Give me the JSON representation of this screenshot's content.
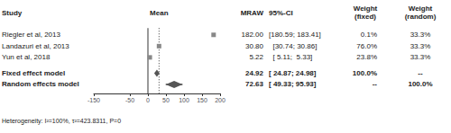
{
  "chart_data": {
    "type": "forest",
    "columns": {
      "study": "Study",
      "mraw": "MRAW",
      "ci": "95%-CI",
      "weight_fixed": "Weight\n(fixed)",
      "weight_random": "Weight\n(random)"
    },
    "categories": [
      "Riegler et al, 2013",
      "Landazuri et al, 2013",
      "Yun et al, 2018"
    ],
    "values": [
      182.0,
      30.8,
      5.22
    ],
    "ci_low": [
      180.59,
      30.74,
      5.11
    ],
    "ci_high": [
      183.41,
      30.86,
      5.33
    ],
    "value_labels": [
      " 182.00",
      "  30.80",
      "   5.22"
    ],
    "ci_labels": [
      "[180.59; 183.41]",
      "  [30.74; 30.86]",
      "  [ 5.11;  5.33]"
    ],
    "weight_fixed": [
      "  0.1%",
      " 76.0%",
      " 23.8%"
    ],
    "weight_random": [
      "33.3%",
      "33.3%",
      "33.3%"
    ],
    "color": "#888888",
    "marker": "square",
    "summary": [
      {
        "name": "Fixed effect model",
        "value": 24.92,
        "ci_low": 24.87,
        "ci_high": 24.98,
        "value_label": "  24.92",
        "ci_label": "[ 24.87; 24.98]",
        "weight_fixed": "100.0%",
        "weight_random": "--",
        "color": "#555555",
        "marker": "diamond"
      },
      {
        "name": "Random effects model",
        "value": 72.63,
        "ci_low": 49.33,
        "ci_high": 95.93,
        "value_label": "  72.63",
        "ci_label": "[ 49.33; 95.93]",
        "weight_fixed": "--",
        "weight_random": "100.0%",
        "color": "#555555",
        "marker": "diamond"
      }
    ],
    "reference_lines": [
      {
        "value": 0,
        "line_style": "solid"
      },
      {
        "value": 30.8,
        "line_style": "dotted",
        "label": "Mean"
      }
    ],
    "annotations": [
      "Heterogeneity: I²=100%, τ²=423.8311, P=0"
    ],
    "xlim": [
      -150,
      200
    ],
    "xticks": [
      -150,
      -50,
      0,
      50,
      100,
      150,
      200
    ]
  }
}
